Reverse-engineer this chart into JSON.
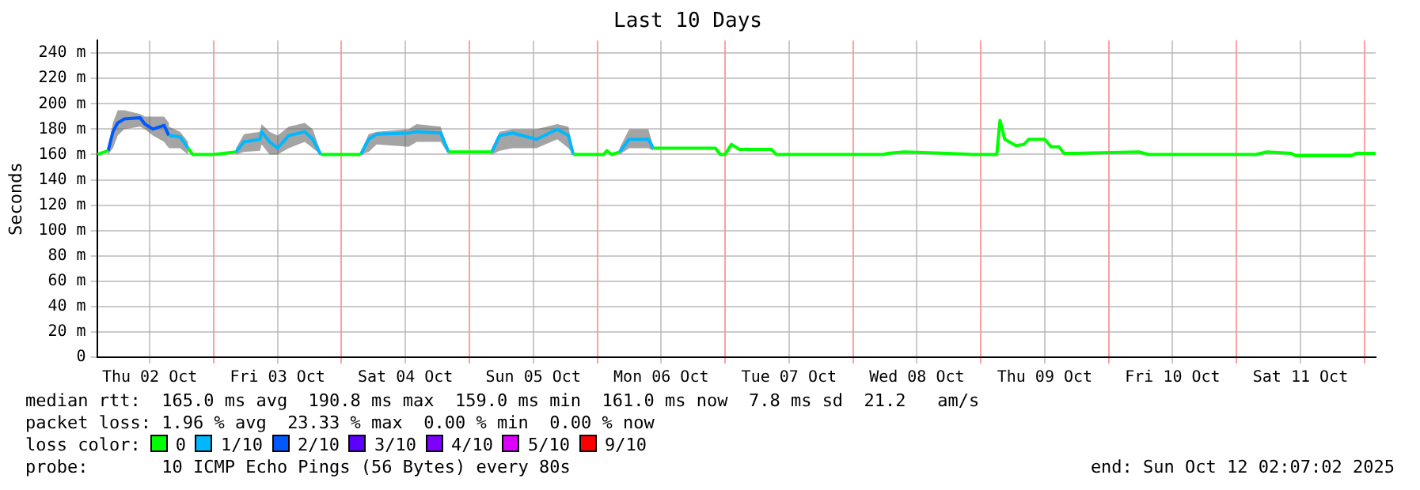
{
  "chart_data": {
    "type": "line",
    "title": "Last 10 Days",
    "ylabel": "Seconds",
    "legend_title": "loss color:",
    "legend": "bottom",
    "grid": true,
    "marker": "none",
    "line_style": "solid",
    "xlim": [
      "2025-10-02T02:07",
      "2025-10-12T02:07"
    ],
    "xticks": [
      {
        "value": "2025-10-02T12:00",
        "label": "Thu 02 Oct"
      },
      {
        "value": "2025-10-03T00:00",
        "label": null
      },
      {
        "value": "2025-10-03T12:00",
        "label": "Fri 03 Oct"
      },
      {
        "value": "2025-10-04T00:00",
        "label": null
      },
      {
        "value": "2025-10-04T12:00",
        "label": "Sat 04 Oct"
      },
      {
        "value": "2025-10-05T00:00",
        "label": null
      },
      {
        "value": "2025-10-05T12:00",
        "label": "Sun 05 Oct"
      },
      {
        "value": "2025-10-06T00:00",
        "label": null
      },
      {
        "value": "2025-10-06T12:00",
        "label": "Mon 06 Oct"
      },
      {
        "value": "2025-10-07T00:00",
        "label": null
      },
      {
        "value": "2025-10-07T12:00",
        "label": "Tue 07 Oct"
      },
      {
        "value": "2025-10-08T00:00",
        "label": null
      },
      {
        "value": "2025-10-08T12:00",
        "label": "Wed 08 Oct"
      },
      {
        "value": "2025-10-09T00:00",
        "label": null
      },
      {
        "value": "2025-10-09T12:00",
        "label": "Thu 09 Oct"
      },
      {
        "value": "2025-10-10T00:00",
        "label": null
      },
      {
        "value": "2025-10-10T12:00",
        "label": "Fri 10 Oct"
      },
      {
        "value": "2025-10-11T00:00",
        "label": null
      },
      {
        "value": "2025-10-11T12:00",
        "label": "Sat 11 Oct"
      },
      {
        "value": "2025-10-12T00:00",
        "label": null
      }
    ],
    "ylim": [
      0,
      250
    ],
    "yticks": [
      0,
      {
        "value": 20,
        "label": "20 m"
      },
      {
        "value": 40,
        "label": "40 m"
      },
      {
        "value": 60,
        "label": "60 m"
      },
      {
        "value": 80,
        "label": "80 m"
      },
      {
        "value": 100,
        "label": "100 m"
      },
      {
        "value": 120,
        "label": "120 m"
      },
      {
        "value": 140,
        "label": "140 m"
      },
      {
        "value": 160,
        "label": "160 m"
      },
      {
        "value": 180,
        "label": "180 m"
      },
      {
        "value": 200,
        "label": "200 m"
      },
      {
        "value": 220,
        "label": "220 m"
      },
      {
        "value": 240,
        "label": "240 m"
      }
    ],
    "series": [
      {
        "name": "0",
        "color": "#00ff00",
        "x": [
          "2025-10-02T02:10",
          "2025-10-02T04:12",
          "2025-10-02T12:00",
          "2025-10-02T19:12",
          "2025-10-02T20:06",
          "2025-10-03T00:00",
          "2025-10-03T04:12",
          "2025-10-03T12:00",
          "2025-10-03T20:06",
          "2025-10-04T03:36",
          "2025-10-04T12:00",
          "2025-10-04T20:06",
          "2025-10-05T04:12",
          "2025-10-05T12:00",
          "2025-10-05T19:30",
          "2025-10-06T01:12",
          "2025-10-06T01:48",
          "2025-10-06T02:42",
          "2025-10-06T04:12",
          "2025-10-06T08:00",
          "2025-10-06T10:30",
          "2025-10-06T18:36",
          "2025-10-06T22:12",
          "2025-10-06T23:06",
          "2025-10-07T00:00",
          "2025-10-07T01:12",
          "2025-10-07T02:42",
          "2025-10-07T08:42",
          "2025-10-07T09:36",
          "2025-10-07T18:36",
          "2025-10-08T05:42",
          "2025-10-08T06:36",
          "2025-10-08T09:36",
          "2025-10-08T17:42",
          "2025-10-08T22:30",
          "2025-10-09T03:00",
          "2025-10-09T03:36",
          "2025-10-09T04:30",
          "2025-10-09T06:36",
          "2025-10-09T08:06",
          "2025-10-09T09:00",
          "2025-10-09T12:00",
          "2025-10-09T13:12",
          "2025-10-09T14:42",
          "2025-10-09T15:36",
          "2025-10-09T17:42",
          "2025-10-10T05:42",
          "2025-10-10T07:30",
          "2025-10-11T03:36",
          "2025-10-11T05:42",
          "2025-10-11T10:12",
          "2025-10-11T11:06",
          "2025-10-11T21:36",
          "2025-10-11T22:30",
          "2025-10-12T02:06"
        ],
        "values": [
          160,
          163,
          null,
          165,
          160,
          160,
          162,
          null,
          160,
          160,
          null,
          162,
          162,
          null,
          160,
          160,
          163,
          160,
          162,
          null,
          165,
          165,
          165,
          160,
          160,
          168,
          164,
          164,
          160,
          160,
          160,
          161,
          162,
          161,
          160,
          160,
          187,
          172,
          167,
          168,
          172,
          172,
          166,
          166,
          161,
          161,
          162,
          160,
          160,
          162,
          161,
          159,
          159,
          161,
          161
        ]
      },
      {
        "name": "1/10",
        "color": "#00b8ff",
        "x": [
          "2025-10-02T15:36",
          "2025-10-02T17:42",
          "2025-10-02T19:12",
          "2025-10-02T22:00",
          "2025-10-03T04:12",
          "2025-10-03T05:42",
          "2025-10-03T08:42",
          "2025-10-03T09:00",
          "2025-10-03T10:30",
          "2025-10-03T12:00",
          "2025-10-03T14:06",
          "2025-10-03T17:06",
          "2025-10-03T18:36",
          "2025-10-03T20:06",
          "2025-10-04T00:00",
          "2025-10-04T03:36",
          "2025-10-04T05:06",
          "2025-10-04T06:36",
          "2025-10-04T12:36",
          "2025-10-04T14:06",
          "2025-10-04T18:36",
          "2025-10-04T20:06",
          "2025-10-05T00:00",
          "2025-10-05T04:12",
          "2025-10-05T05:42",
          "2025-10-05T08:06",
          "2025-10-05T12:36",
          "2025-10-05T16:30",
          "2025-10-05T18:36",
          "2025-10-05T19:30",
          "2025-10-06T00:00",
          "2025-10-06T04:12",
          "2025-10-06T06:00",
          "2025-10-06T09:36",
          "2025-10-06T10:30"
        ],
        "values": [
          175,
          174,
          165,
          null,
          162,
          170,
          172,
          178,
          170,
          165,
          175,
          178,
          172,
          160,
          null,
          160,
          172,
          176,
          177,
          178,
          177,
          162,
          null,
          162,
          175,
          177,
          172,
          180,
          175,
          160,
          null,
          162,
          172,
          172,
          165
        ],
        "lower": [
          165,
          165,
          160,
          null,
          160,
          162,
          163,
          168,
          160,
          160,
          165,
          170,
          165,
          160,
          null,
          160,
          162,
          168,
          166,
          170,
          170,
          160,
          null,
          160,
          163,
          165,
          165,
          172,
          165,
          160,
          null,
          160,
          165,
          165,
          163
        ],
        "upper": [
          182,
          178,
          170,
          null,
          165,
          176,
          178,
          184,
          178,
          175,
          182,
          185,
          180,
          162,
          null,
          162,
          176,
          178,
          180,
          184,
          182,
          164,
          null,
          165,
          178,
          180,
          180,
          184,
          182,
          162,
          null,
          165,
          180,
          180,
          167
        ]
      },
      {
        "name": "2/10",
        "color": "#0059ff",
        "x": [
          "2025-10-02T04:12",
          "2025-10-02T05:06",
          "2025-10-02T06:00",
          "2025-10-02T07:12",
          "2025-10-02T10:12",
          "2025-10-02T11:06",
          "2025-10-02T12:36",
          "2025-10-02T14:42",
          "2025-10-02T15:36"
        ],
        "values": [
          163,
          178,
          185,
          188,
          189,
          184,
          180,
          183,
          175
        ],
        "lower": [
          160,
          165,
          175,
          180,
          182,
          180,
          175,
          170,
          165
        ],
        "upper": [
          165,
          185,
          195,
          195,
          192,
          190,
          190,
          190,
          185
        ]
      },
      {
        "name": "3/10",
        "color": "#5e00ff"
      },
      {
        "name": "4/10",
        "color": "#7e00ff"
      },
      {
        "name": "5/10",
        "color": "#dd00ff"
      },
      {
        "name": "9/10",
        "color": "#ff0000"
      }
    ],
    "annotations": [
      "median rtt:  165.0 ms avg  190.8 ms max  159.0 ms min  161.0 ms now  7.8 ms sd  21.2   am/s",
      "packet loss: 1.96 % avg  23.33 % max  0.00 % min  0.00 % now",
      "probe:       10 ICMP Echo Pings (56 Bytes) every 80s",
      "end: Sun Oct 12 02:07:02 2025"
    ]
  }
}
